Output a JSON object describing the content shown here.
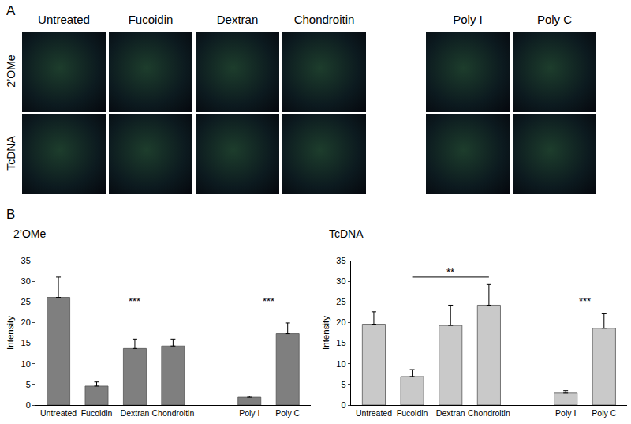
{
  "panel_a": {
    "label": "A",
    "groups": [
      [
        "Untreated",
        "Fucoidin",
        "Dextran",
        "Chondroitin"
      ],
      [
        "Poly I",
        "Poly C"
      ]
    ],
    "rows": [
      "2’OMe",
      "TcDNA"
    ]
  },
  "panel_b": {
    "label": "B"
  },
  "chart_data": [
    {
      "type": "bar",
      "title": "2’OMe",
      "y_label": "Intensity",
      "categories": [
        "Untreated",
        "Fucoidin",
        "Dextran",
        "Chondroitin",
        null,
        "Poly I",
        "Poly C"
      ],
      "values": [
        26.1,
        4.6,
        13.7,
        14.3,
        null,
        1.9,
        17.3
      ],
      "errors": [
        4.9,
        1.0,
        2.3,
        1.7,
        null,
        0.3,
        2.6
      ],
      "color": "#7f7f7f",
      "ylim": [
        0,
        35
      ],
      "yticks": [
        0,
        5,
        10,
        15,
        20,
        25,
        30,
        35
      ],
      "grid": false,
      "significance": [
        {
          "from": "Fucoidin",
          "to": "Chondroitin",
          "y": 24,
          "label": "***"
        },
        {
          "from": "Poly I",
          "to": "Poly C",
          "y": 24,
          "label": "***"
        }
      ]
    },
    {
      "type": "bar",
      "title": "TcDNA",
      "y_label": "Intensity",
      "categories": [
        "Untreated",
        "Fucoidin",
        "Dextran",
        "Chondroitin",
        null,
        "Poly I",
        "Poly C"
      ],
      "values": [
        19.6,
        6.9,
        19.3,
        24.2,
        null,
        2.9,
        18.6
      ],
      "errors": [
        3.0,
        1.7,
        4.9,
        5.0,
        null,
        0.6,
        3.5
      ],
      "color": "#c9c9c9",
      "ylim": [
        0,
        35
      ],
      "yticks": [
        0,
        5,
        10,
        15,
        20,
        25,
        30,
        35
      ],
      "grid": false,
      "significance": [
        {
          "from": "Fucoidin",
          "to": "Chondroitin",
          "y": 31,
          "label": "**"
        },
        {
          "from": "Poly I",
          "to": "Poly C",
          "y": 24,
          "label": "***"
        }
      ]
    }
  ]
}
